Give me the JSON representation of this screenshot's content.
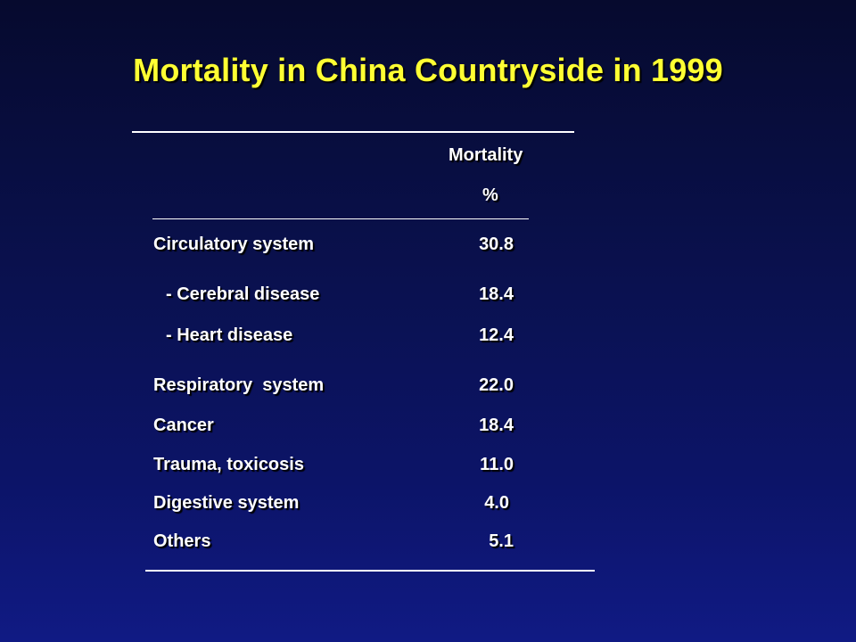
{
  "slide": {
    "title": "Mortality in China Countryside in 1999"
  },
  "table": {
    "header": {
      "column": "Mortality",
      "unit": "%"
    },
    "rows": [
      {
        "label": "Circulatory system",
        "value": "30.8"
      },
      {
        "label": "- Cerebral disease",
        "value": "18.4"
      },
      {
        "label": "- Heart disease",
        "value": "12.4"
      },
      {
        "label": "Respiratory  system",
        "value": "22.0"
      },
      {
        "label": "Cancer",
        "value": "18.4"
      },
      {
        "label": "Trauma, toxicosis",
        "value": "11.0"
      },
      {
        "label": "Digestive system",
        "value": "4.0"
      },
      {
        "label": "Others",
        "value": "5.1"
      }
    ]
  },
  "colors": {
    "title": "#ffff33",
    "text": "#ffffff",
    "background_top": "#060a2e",
    "background_bottom": "#101a84"
  }
}
